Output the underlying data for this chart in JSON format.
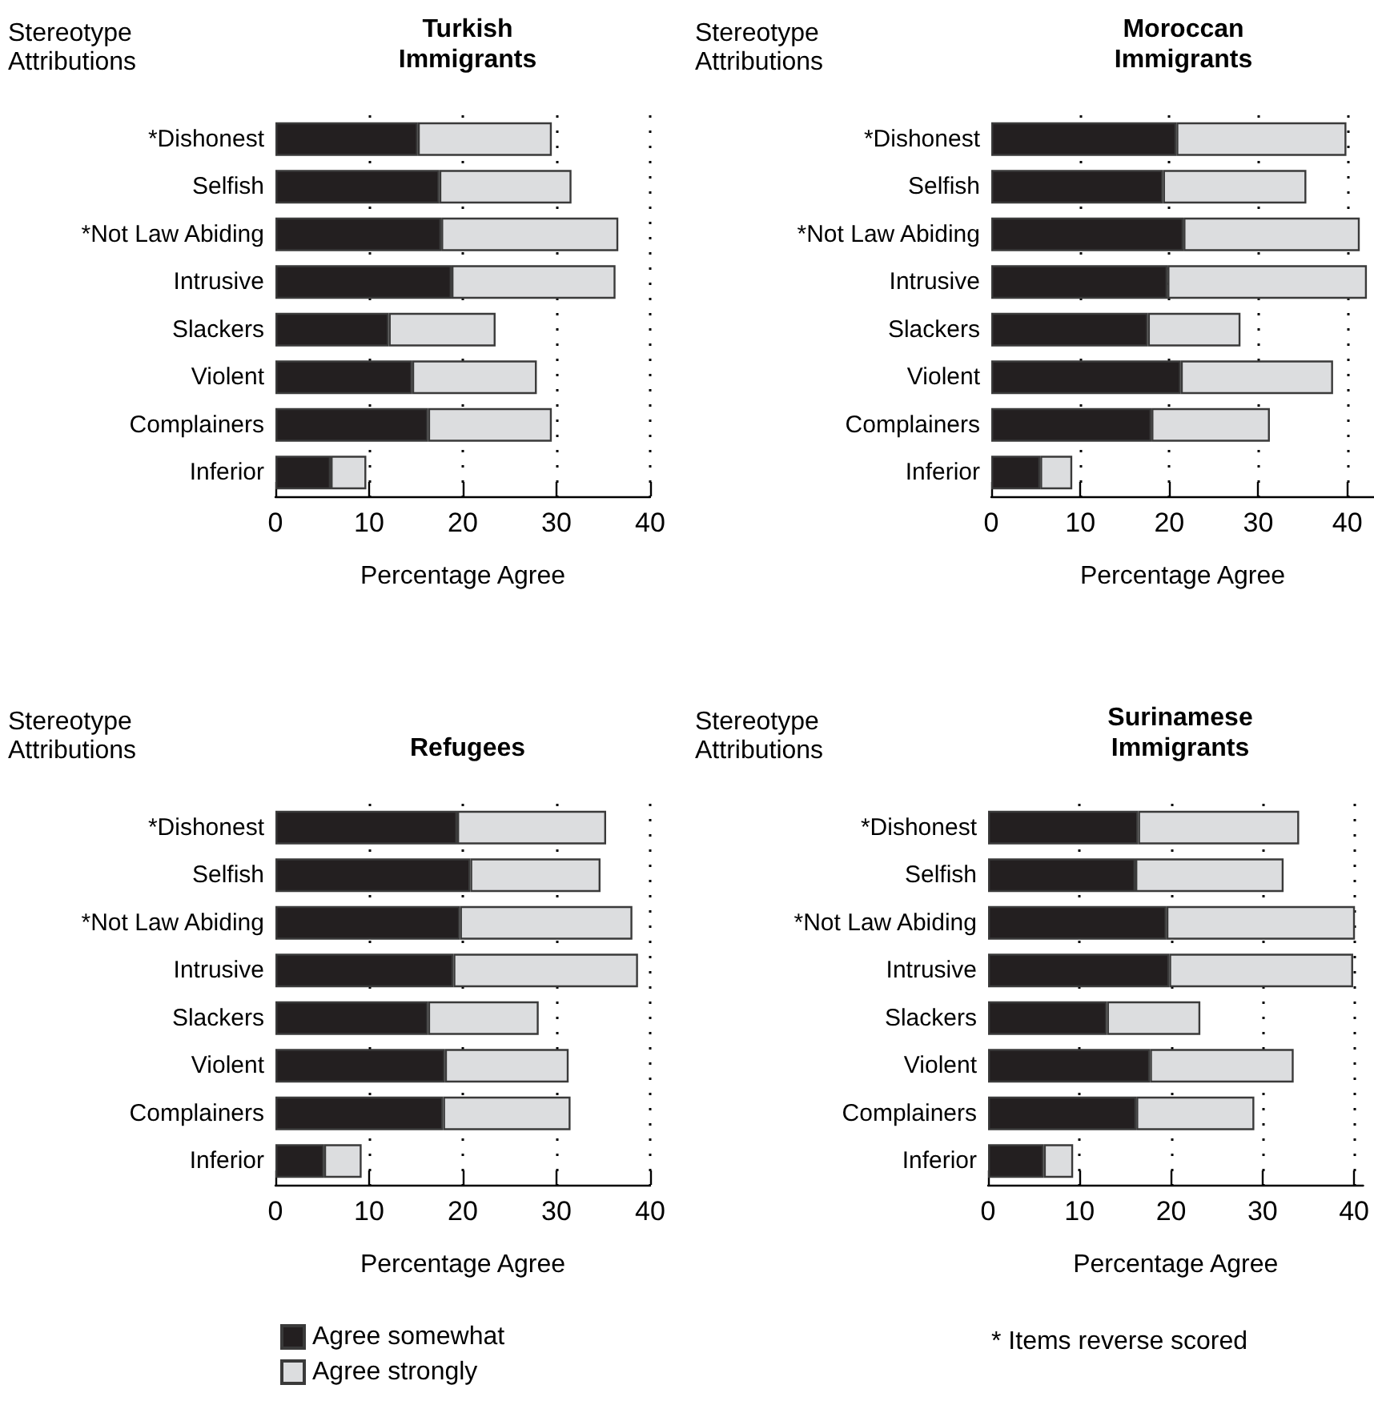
{
  "chart_data": [
    {
      "type": "bar",
      "orientation": "horizontal",
      "stacked": true,
      "title": "Turkish\nImmigrants",
      "ylabel": "Stereotype\nAttributions",
      "xlabel": "Percentage Agree",
      "categories": [
        "*Dishonest",
        "Selfish",
        "*Not Law Abiding",
        "Intrusive",
        "Slackers",
        "Violent",
        "Complainers",
        "Inferior"
      ],
      "series": [
        {
          "color": "#231f20",
          "values": [
            15.2,
            17.5,
            17.7,
            18.8,
            12.1,
            14.6,
            16.3,
            5.9
          ]
        },
        {
          "color": "#dcdddf",
          "values": [
            14.3,
            14.1,
            18.9,
            17.5,
            11.4,
            13.3,
            13.2,
            3.8
          ]
        }
      ],
      "xlim": [
        0,
        40
      ],
      "xticks": [
        0,
        10,
        20,
        30,
        40
      ],
      "grid": "x",
      "legend": false
    },
    {
      "type": "bar",
      "orientation": "horizontal",
      "stacked": true,
      "title": "Moroccan\nImmigrants",
      "ylabel": "Stereotype\nAttributions",
      "xlabel": "Percentage Agree",
      "categories": [
        "*Dishonest",
        "Selfish",
        "*Not Law Abiding",
        "Intrusive",
        "Slackers",
        "Violent",
        "Complainers",
        "Inferior"
      ],
      "series": [
        {
          "color": "#231f20",
          "values": [
            20.8,
            19.3,
            21.6,
            19.8,
            17.6,
            21.3,
            18.0,
            5.5
          ]
        },
        {
          "color": "#dcdddf",
          "values": [
            19.1,
            16.1,
            19.8,
            22.4,
            10.4,
            17.1,
            13.3,
            3.6
          ]
        }
      ],
      "xlim": [
        0,
        43
      ],
      "xticks": [
        0,
        10,
        20,
        30,
        40
      ],
      "grid": "x",
      "legend": false
    },
    {
      "type": "bar",
      "orientation": "horizontal",
      "stacked": true,
      "title": "Refugees",
      "ylabel": "Stereotype\nAttributions",
      "xlabel": "Percentage Agree",
      "categories": [
        "*Dishonest",
        "Selfish",
        "*Not Law Abiding",
        "Intrusive",
        "Slackers",
        "Violent",
        "Complainers",
        "Inferior"
      ],
      "series": [
        {
          "name": "Agree somewhat",
          "color": "#231f20",
          "values": [
            19.4,
            20.8,
            19.7,
            19.0,
            16.3,
            18.1,
            17.9,
            5.2
          ]
        },
        {
          "name": "Agree strongly",
          "color": "#dcdddf",
          "values": [
            15.9,
            13.9,
            18.4,
            19.7,
            11.8,
            13.2,
            13.6,
            4.0
          ]
        }
      ],
      "xlim": [
        0,
        40
      ],
      "xticks": [
        0,
        10,
        20,
        30,
        40
      ],
      "grid": "x",
      "legend": "bottom"
    },
    {
      "type": "bar",
      "orientation": "horizontal",
      "stacked": true,
      "title": "Surinamese\nImmigrants",
      "ylabel": "Stereotype\nAttributions",
      "xlabel": "Percentage Agree",
      "categories": [
        "*Dishonest",
        "Selfish",
        "*Not Law Abiding",
        "Intrusive",
        "Slackers",
        "Violent",
        "Complainers",
        "Inferior"
      ],
      "series": [
        {
          "color": "#231f20",
          "values": [
            16.4,
            16.1,
            19.5,
            19.8,
            13.0,
            17.7,
            16.2,
            6.1
          ]
        },
        {
          "color": "#dcdddf",
          "values": [
            17.6,
            16.2,
            20.6,
            20.1,
            10.2,
            15.7,
            12.9,
            3.2
          ]
        }
      ],
      "xlim": [
        0,
        41
      ],
      "xticks": [
        0,
        10,
        20,
        30,
        40
      ],
      "grid": "x",
      "legend": false,
      "annotations": [
        "* Items reverse scored"
      ]
    }
  ]
}
